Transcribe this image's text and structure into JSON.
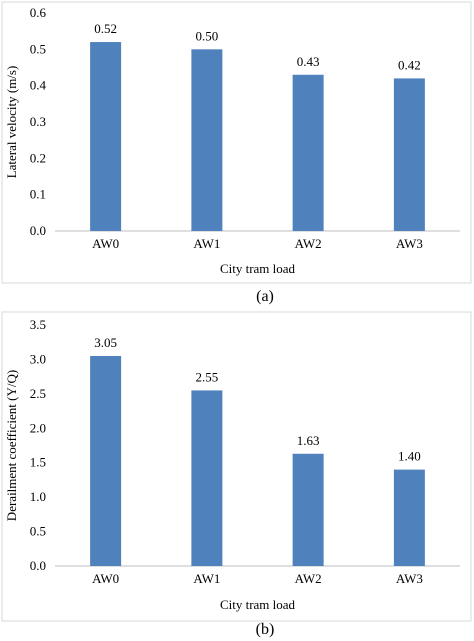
{
  "chart_data": [
    {
      "type": "bar",
      "panel": "(a)",
      "categories": [
        "AW0",
        "AW1",
        "AW2",
        "AW3"
      ],
      "values": [
        0.52,
        0.5,
        0.43,
        0.42
      ],
      "data_labels": [
        "0.52",
        "0.50",
        "0.43",
        "0.42"
      ],
      "xlabel": "City tram load",
      "ylabel": "Lateral velocity (m/s)",
      "ylim": [
        0,
        0.6
      ],
      "yticks": [
        "0.0",
        "0.1",
        "0.2",
        "0.3",
        "0.4",
        "0.5",
        "0.6"
      ],
      "grid": false,
      "legend": "none",
      "bar_color": "#4f81bd"
    },
    {
      "type": "bar",
      "panel": "(b)",
      "categories": [
        "AW0",
        "AW1",
        "AW2",
        "AW3"
      ],
      "values": [
        3.05,
        2.55,
        1.63,
        1.4
      ],
      "data_labels": [
        "3.05",
        "2.55",
        "1.63",
        "1.40"
      ],
      "xlabel": "City tram load",
      "ylabel": "Derailment coefficient (Y/Q)",
      "ylim": [
        0,
        3.5
      ],
      "yticks": [
        "0.0",
        "0.5",
        "1.0",
        "1.5",
        "2.0",
        "2.5",
        "3.0",
        "3.5"
      ],
      "grid": false,
      "legend": "none",
      "bar_color": "#4f81bd"
    }
  ]
}
